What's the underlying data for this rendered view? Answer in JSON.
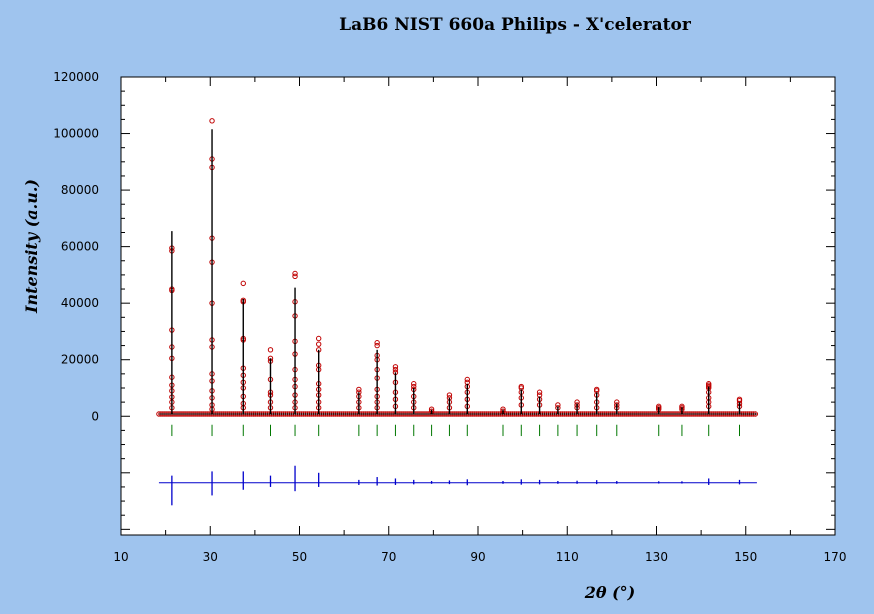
{
  "chart_data": {
    "type": "scatter",
    "title": "LaB6 NIST 660a Philips - X'celerator",
    "xlabel": "2θ (°)",
    "ylabel": "Intensity (a.u.)",
    "xlim": [
      10,
      170
    ],
    "ylim": [
      -42000,
      120000
    ],
    "x_ticks": [
      10,
      30,
      50,
      70,
      90,
      110,
      130,
      150,
      170
    ],
    "y_ticks": [
      0,
      20000,
      40000,
      60000,
      80000,
      100000,
      120000
    ],
    "grid": false,
    "colors": {
      "background": "#9fc4ee",
      "plot_area": "#ffffff",
      "observed": "#c00000",
      "calculated": "#000000",
      "difference": "#0000cc",
      "reflection_ticks": "#007700"
    },
    "series": [
      {
        "type": "observed_points",
        "baseline": 800,
        "range": [
          18.5,
          152.5
        ],
        "peaks": [
          {
            "x": 21.4,
            "points": [
              59500,
              58500,
              45000,
              44500,
              30500,
              24500,
              20500,
              13800,
              11000,
              9000,
              6800,
              5000,
              3000
            ]
          },
          {
            "x": 30.4,
            "points": [
              104500,
              91000,
              88000,
              63000,
              54500,
              40000,
              27000,
              24500,
              15000,
              12500,
              9000,
              6500,
              4000,
              2500
            ]
          },
          {
            "x": 37.4,
            "points": [
              47000,
              41000,
              40500,
              27500,
              27000,
              17000,
              14500,
              12000,
              10000,
              7000,
              4500,
              3000
            ]
          },
          {
            "x": 43.5,
            "points": [
              23500,
              20500,
              19500,
              13000,
              8500,
              7500,
              5000,
              3000
            ]
          },
          {
            "x": 49.0,
            "points": [
              50500,
              49500,
              40500,
              35500,
              26500,
              22000,
              16500,
              13000,
              10500,
              7500,
              5000,
              3000
            ]
          },
          {
            "x": 54.3,
            "points": [
              27500,
              25500,
              23500,
              18000,
              16500,
              11500,
              9500,
              7500,
              5000,
              3000
            ]
          },
          {
            "x": 63.3,
            "points": [
              9500,
              8500,
              7000,
              5000,
              3000
            ]
          },
          {
            "x": 67.4,
            "points": [
              26000,
              25000,
              21500,
              20000,
              16500,
              13500,
              9500,
              7000,
              5000,
              3000
            ]
          },
          {
            "x": 71.5,
            "points": [
              17500,
              16500,
              15500,
              12000,
              8500,
              6000,
              3500
            ]
          },
          {
            "x": 75.6,
            "points": [
              11500,
              10500,
              9500,
              7000,
              5000,
              3000
            ]
          },
          {
            "x": 79.6,
            "points": [
              2500,
              1800
            ]
          },
          {
            "x": 83.6,
            "points": [
              7500,
              6500,
              5000,
              3000
            ]
          },
          {
            "x": 87.6,
            "points": [
              13000,
              12000,
              10500,
              8500,
              6000,
              3500
            ]
          },
          {
            "x": 95.6,
            "points": [
              2500,
              1800
            ]
          },
          {
            "x": 99.7,
            "points": [
              10500,
              10000,
              8500,
              6500,
              4000
            ]
          },
          {
            "x": 103.8,
            "points": [
              8500,
              7500,
              6000,
              4000
            ]
          },
          {
            "x": 107.9,
            "points": [
              4000,
              3000
            ]
          },
          {
            "x": 112.2,
            "points": [
              5000,
              4000,
              3000
            ]
          },
          {
            "x": 116.6,
            "points": [
              9500,
              9000,
              7500,
              5000,
              3000
            ]
          },
          {
            "x": 121.1,
            "points": [
              5000,
              4000,
              3000
            ]
          },
          {
            "x": 130.5,
            "points": [
              3500,
              3000,
              2500
            ]
          },
          {
            "x": 135.7,
            "points": [
              3500,
              3000,
              2500
            ]
          },
          {
            "x": 141.7,
            "points": [
              11500,
              11000,
              10500,
              10000,
              8500,
              6500,
              5000,
              3500
            ]
          },
          {
            "x": 148.6,
            "points": [
              6000,
              5500,
              4500,
              3500
            ]
          }
        ]
      },
      {
        "type": "calculated_line",
        "baseline": 800,
        "peaks": [
          {
            "x": 21.4,
            "y": 65500
          },
          {
            "x": 30.4,
            "y": 101500
          },
          {
            "x": 37.4,
            "y": 41500
          },
          {
            "x": 43.5,
            "y": 20500
          },
          {
            "x": 49.0,
            "y": 45500
          },
          {
            "x": 54.3,
            "y": 23500
          },
          {
            "x": 63.3,
            "y": 8500
          },
          {
            "x": 67.4,
            "y": 23500
          },
          {
            "x": 71.5,
            "y": 15500
          },
          {
            "x": 75.6,
            "y": 10000
          },
          {
            "x": 79.6,
            "y": 2300
          },
          {
            "x": 83.6,
            "y": 6500
          },
          {
            "x": 87.6,
            "y": 11500
          },
          {
            "x": 95.6,
            "y": 2300
          },
          {
            "x": 99.7,
            "y": 9500
          },
          {
            "x": 103.8,
            "y": 7000
          },
          {
            "x": 107.9,
            "y": 3500
          },
          {
            "x": 112.2,
            "y": 4500
          },
          {
            "x": 116.6,
            "y": 8500
          },
          {
            "x": 121.1,
            "y": 4500
          },
          {
            "x": 130.5,
            "y": 3200
          },
          {
            "x": 135.7,
            "y": 3200
          },
          {
            "x": 141.7,
            "y": 10500
          },
          {
            "x": 148.6,
            "y": 5000
          }
        ]
      },
      {
        "type": "reflection_ticks",
        "y_range": [
          -7000,
          -3000
        ],
        "x": [
          21.4,
          30.4,
          37.4,
          43.5,
          49.0,
          54.3,
          63.3,
          67.4,
          71.5,
          75.6,
          79.6,
          83.6,
          87.6,
          95.6,
          99.7,
          103.8,
          107.9,
          112.2,
          116.6,
          121.1,
          130.5,
          135.7,
          141.7,
          148.6
        ]
      },
      {
        "type": "difference_curve",
        "baseline": -23500,
        "range": [
          18.5,
          152.5
        ],
        "spikes": [
          {
            "x": 21.4,
            "up": 2500,
            "down": -8000
          },
          {
            "x": 30.4,
            "up": 4000,
            "down": -4500
          },
          {
            "x": 37.4,
            "up": 4000,
            "down": -2500
          },
          {
            "x": 43.5,
            "up": 2500,
            "down": -1500
          },
          {
            "x": 49.0,
            "up": 6000,
            "down": -3000
          },
          {
            "x": 54.3,
            "up": 3500,
            "down": -1500
          },
          {
            "x": 63.3,
            "up": 1000,
            "down": -800
          },
          {
            "x": 67.4,
            "up": 2000,
            "down": -1000
          },
          {
            "x": 71.5,
            "up": 1500,
            "down": -800
          },
          {
            "x": 75.6,
            "up": 1000,
            "down": -600
          },
          {
            "x": 79.6,
            "up": 600,
            "down": -400
          },
          {
            "x": 83.6,
            "up": 800,
            "down": -500
          },
          {
            "x": 87.6,
            "up": 1200,
            "down": -900
          },
          {
            "x": 95.6,
            "up": 600,
            "down": -400
          },
          {
            "x": 99.7,
            "up": 1200,
            "down": -700
          },
          {
            "x": 103.8,
            "up": 1000,
            "down": -600
          },
          {
            "x": 107.9,
            "up": 600,
            "down": -400
          },
          {
            "x": 112.2,
            "up": 700,
            "down": -400
          },
          {
            "x": 116.6,
            "up": 900,
            "down": -500
          },
          {
            "x": 121.1,
            "up": 600,
            "down": -400
          },
          {
            "x": 130.5,
            "up": 500,
            "down": -300
          },
          {
            "x": 135.7,
            "up": 500,
            "down": -300
          },
          {
            "x": 141.7,
            "up": 1500,
            "down": -800
          },
          {
            "x": 148.6,
            "up": 1000,
            "down": -600
          }
        ]
      }
    ]
  }
}
